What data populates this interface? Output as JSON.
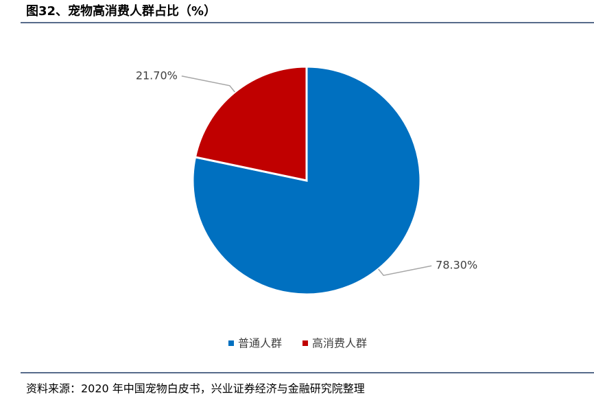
{
  "chart_data": {
    "type": "pie",
    "title": "图32、宠物高消费人群占比（%）",
    "categories": [
      "普通人群",
      "高消费人群"
    ],
    "values": [
      78.3,
      21.7
    ],
    "value_labels": [
      "78.30%",
      "21.70%"
    ],
    "colors": [
      "#0070c0",
      "#c00000"
    ],
    "legend": "bottom",
    "source": "资料来源：2020 年中国宠物白皮书，兴业证券经济与金融研究院整理"
  }
}
